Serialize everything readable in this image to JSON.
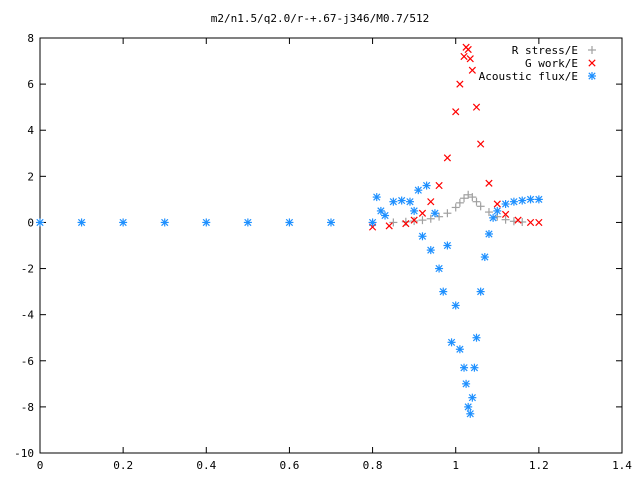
{
  "chart_data": {
    "type": "scatter",
    "title": "m2/n1.5/q2.0/r-+.67-j346/M0.7/512",
    "xlabel": "",
    "ylabel": "",
    "xlim": [
      0,
      1.4
    ],
    "ylim": [
      -10,
      8
    ],
    "xticks": [
      0,
      0.2,
      0.4,
      0.6,
      0.8,
      1,
      1.2,
      1.4
    ],
    "xtick_labels": [
      "0",
      "0.2",
      "0.4",
      "0.6",
      "0.8",
      "1",
      "1.2",
      "1.4"
    ],
    "yticks": [
      -10,
      -8,
      -6,
      -4,
      -2,
      0,
      2,
      4,
      6,
      8
    ],
    "ytick_labels": [
      "-10",
      "-8",
      "-6",
      "-4",
      "-2",
      "0",
      "2",
      "4",
      "6",
      "8"
    ],
    "grid": false,
    "legend_position": "top-right",
    "series": [
      {
        "name": "R stress/E",
        "marker": "plus",
        "color": "#a0a0a0",
        "x": [
          0.85,
          0.88,
          0.9,
          0.92,
          0.94,
          0.96,
          0.98,
          1.0,
          1.01,
          1.02,
          1.03,
          1.04,
          1.05,
          1.06,
          1.08,
          1.1,
          1.12,
          1.14,
          1.16
        ],
        "y": [
          0.0,
          0.03,
          0.06,
          0.1,
          0.16,
          0.25,
          0.4,
          0.65,
          0.85,
          1.05,
          1.2,
          1.1,
          0.9,
          0.7,
          0.45,
          0.25,
          0.12,
          0.05,
          0.02
        ]
      },
      {
        "name": "G work/E",
        "marker": "x",
        "color": "#ff0000",
        "x": [
          0.8,
          0.84,
          0.88,
          0.9,
          0.92,
          0.94,
          0.96,
          0.98,
          1.0,
          1.01,
          1.02,
          1.025,
          1.03,
          1.035,
          1.04,
          1.05,
          1.06,
          1.08,
          1.1,
          1.12,
          1.15,
          1.18,
          1.2
        ],
        "y": [
          -0.2,
          -0.15,
          -0.05,
          0.1,
          0.4,
          0.9,
          1.6,
          2.8,
          4.8,
          6.0,
          7.2,
          7.6,
          7.5,
          7.1,
          6.6,
          5.0,
          3.4,
          1.7,
          0.8,
          0.35,
          0.1,
          0.0,
          0.0
        ]
      },
      {
        "name": "Acoustic flux/E",
        "marker": "star",
        "color": "#1e90ff",
        "x": [
          0.0,
          0.1,
          0.2,
          0.3,
          0.4,
          0.5,
          0.6,
          0.7,
          0.8,
          0.81,
          0.82,
          0.83,
          0.85,
          0.87,
          0.89,
          0.9,
          0.91,
          0.92,
          0.93,
          0.94,
          0.95,
          0.96,
          0.97,
          0.98,
          0.99,
          1.0,
          1.01,
          1.02,
          1.025,
          1.03,
          1.035,
          1.04,
          1.045,
          1.05,
          1.06,
          1.07,
          1.08,
          1.09,
          1.1,
          1.12,
          1.14,
          1.16,
          1.18,
          1.2
        ],
        "y": [
          0.0,
          0.0,
          0.0,
          0.0,
          0.0,
          0.0,
          0.0,
          0.0,
          0.0,
          1.1,
          0.5,
          0.3,
          0.9,
          0.95,
          0.9,
          0.5,
          1.4,
          -0.6,
          1.6,
          -1.2,
          0.4,
          -2.0,
          -3.0,
          -1.0,
          -5.2,
          -3.6,
          -5.5,
          -6.3,
          -7.0,
          -8.0,
          -8.3,
          -7.6,
          -6.3,
          -5.0,
          -3.0,
          -1.5,
          -0.5,
          0.2,
          0.5,
          0.8,
          0.9,
          0.95,
          1.0,
          1.0
        ]
      }
    ]
  }
}
